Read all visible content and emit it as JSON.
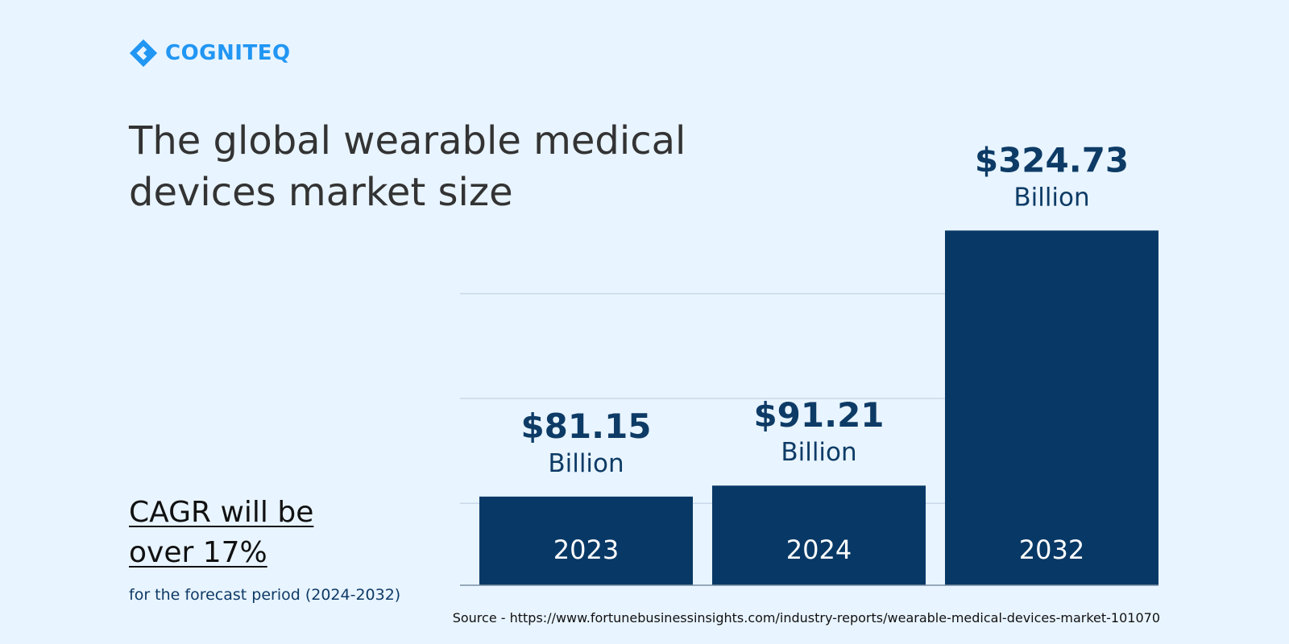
{
  "brand": {
    "name": "COGNITEQ",
    "color": "#2196f3",
    "icon": "cogniteq-logo-icon"
  },
  "title": "The global wearable medical devices market size",
  "cagr": {
    "headline": "CAGR will be over 17%",
    "subtext": "for the forecast period (2024-2032)"
  },
  "source": "Source - https://www.fortunebusinessinsights.com/industry-reports/wearable-medical-devices-market-101070",
  "colors": {
    "background": "#e8f4ff",
    "bar": "#083966",
    "value_text": "#0d3b66",
    "year_text": "#ffffff",
    "gridline": "#c9d9e8",
    "axis": "#7a8ea0"
  },
  "chart_data": {
    "type": "bar",
    "categories": [
      "2023",
      "2024",
      "2032"
    ],
    "values": [
      81.15,
      91.21,
      324.73
    ],
    "value_labels": [
      "$81.15",
      "$91.21",
      "$324.73"
    ],
    "unit_label": "Billion",
    "ylim": [
      0,
      325
    ],
    "gridlines": [
      75,
      171,
      267
    ],
    "grid": true,
    "legend": "none",
    "title": "",
    "xlabel": "",
    "ylabel": ""
  }
}
